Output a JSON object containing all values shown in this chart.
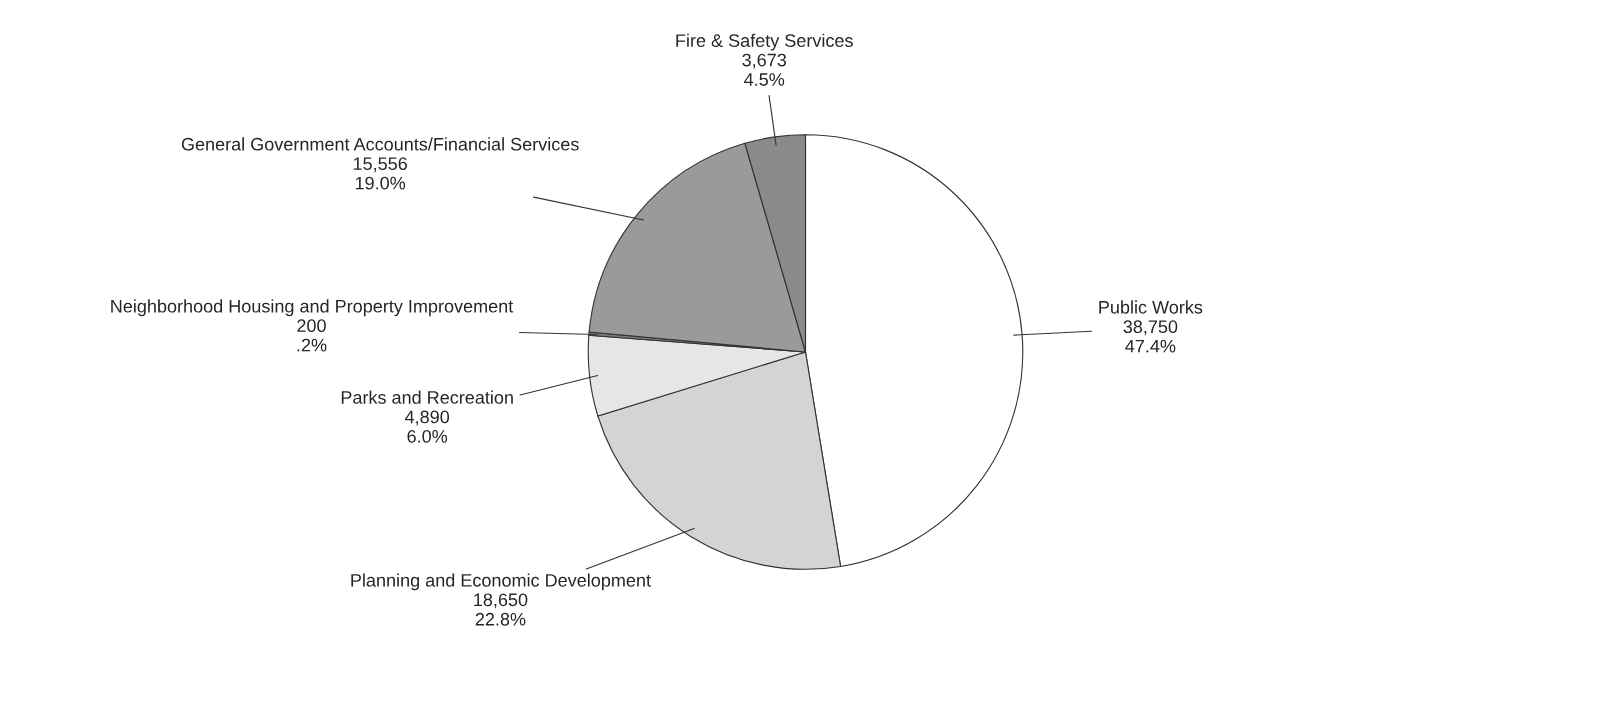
{
  "chart_data": {
    "type": "pie",
    "categories": [
      "Public Works",
      "Planning and Economic Development",
      "Parks and Recreation",
      "Neighborhood Housing and Property Improvement",
      "General Government Accounts/Financial Services",
      "Fire & Safety Services"
    ],
    "values": [
      38750,
      18650,
      4890,
      200,
      15556,
      3673
    ],
    "colors": [
      "#ffffff",
      "#d4d4d4",
      "#e6e6e6",
      "#7a7a7a",
      "#9a9a9a",
      "#8a8a8a"
    ],
    "value_labels": [
      "38,750\n47.4%",
      "18,650\n22.8%",
      "4,890\n6.0%",
      "200\n.2%",
      "15,556\n19.0%",
      "3,673\n4.5%"
    ]
  }
}
